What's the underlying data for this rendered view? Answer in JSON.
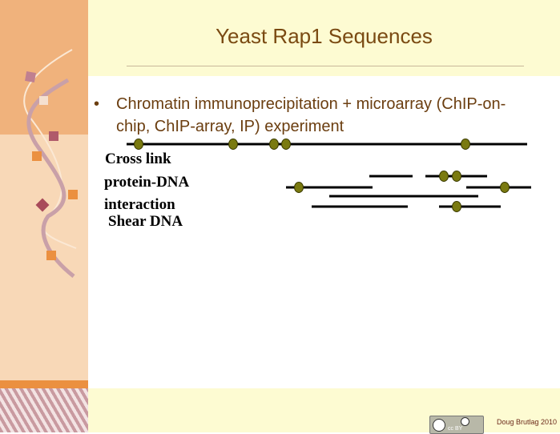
{
  "slide": {
    "title": "Yeast Rap1 Sequences",
    "bullet": "Chromatin immunoprecipitation + microarray (ChIP-on-chip, ChIP-array, IP) experiment",
    "labels": [
      "Cross link",
      "protein-DNA",
      "interaction",
      "Shear DNA"
    ],
    "footer": {
      "credit": "Doug Brutlag 2010",
      "license_badge": "cc BY",
      "license_icon": "creative-commons-icon"
    }
  },
  "colors": {
    "title": "#7a4a12",
    "dot": "#7a7a10",
    "panel": "#f0b27c"
  }
}
